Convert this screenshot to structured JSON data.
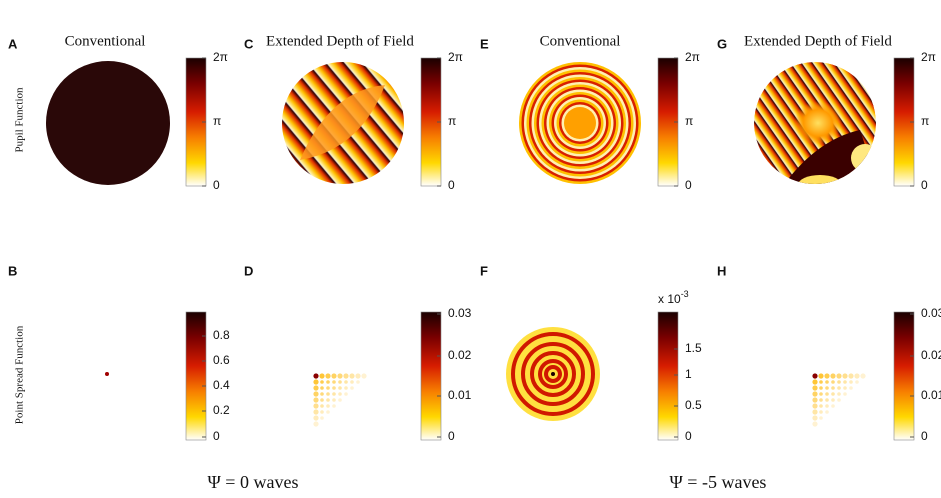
{
  "row_labels": [
    "Pupil Function",
    "Point Spread Function"
  ],
  "panels": [
    {
      "label": "A",
      "title": "Conventional",
      "colorbar_ticks": [
        "2π",
        "π",
        "0"
      ]
    },
    {
      "label": "C",
      "title": "Extended Depth of Field",
      "colorbar_ticks": [
        "2π",
        "π",
        "0"
      ]
    },
    {
      "label": "E",
      "title": "Conventional",
      "colorbar_ticks": [
        "2π",
        "π",
        "0"
      ]
    },
    {
      "label": "G",
      "title": "Extended Depth of Field",
      "colorbar_ticks": [
        "2π",
        "π",
        "0"
      ]
    },
    {
      "label": "B",
      "colorbar_ticks": [
        "0.8",
        "0.6",
        "0.4",
        "0.2",
        "0"
      ]
    },
    {
      "label": "D",
      "colorbar_ticks": [
        "0.03",
        "0.02",
        "0.01",
        "0"
      ]
    },
    {
      "label": "F",
      "colorbar_exponent": {
        "base": "x 10",
        "power": "-3"
      },
      "colorbar_ticks": [
        "1.5",
        "1",
        "0.5",
        "0"
      ]
    },
    {
      "label": "H",
      "colorbar_ticks": [
        "0.03",
        "0.02",
        "0.01",
        "0"
      ]
    }
  ],
  "captions": [
    "Ψ = 0 waves",
    "Ψ = -5 waves"
  ]
}
